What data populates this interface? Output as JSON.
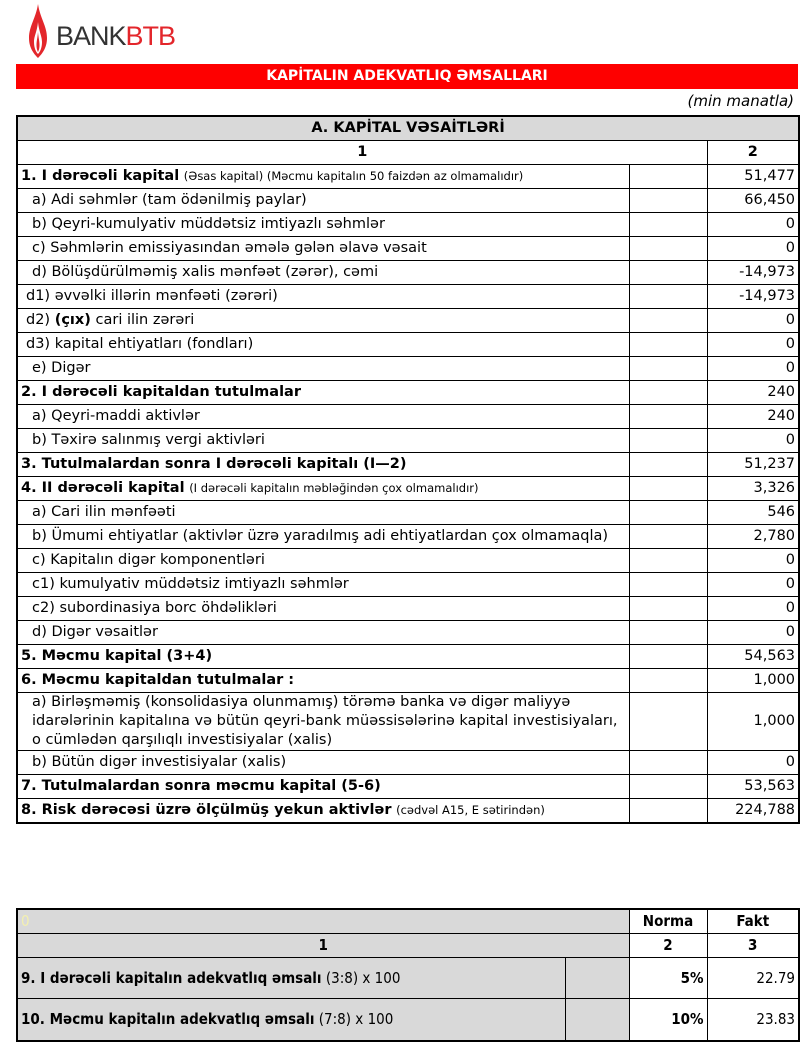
{
  "logo": {
    "text_a": "BANK",
    "text_b": "BTB"
  },
  "title": "KAPİTALIN ADEKVATLIQ ƏMSALLARI",
  "unit": "(min manatla)",
  "section_a": {
    "title": "A. KAPİTAL VƏSAİTLƏRİ",
    "col1": "1",
    "col2": "2"
  },
  "rows": [
    {
      "label": "1. I dərəcəli kapital",
      "note": "(Əsas kapital) (Məcmu kapitalın 50 faizdən  az olmamalıdır)",
      "bold": true,
      "value": "51,477"
    },
    {
      "label": "a) Adi səhmlər (tam ödənilmiş paylar)",
      "value": "66,450"
    },
    {
      "label": "b) Qeyri-kumulyativ müddətsiz imtiyazlı səhmlər",
      "value": "0"
    },
    {
      "label": "c) Səhmlərin emissiyasından əmələ gələn  əlavə vəsait",
      "value": "0"
    },
    {
      "label": "d)   Bölüşdürülməmiş xalis mənfəət (zərər), cəmi",
      "value": "-14,973"
    },
    {
      "label": "d1) əvvəlki illərin mənfəəti (zərəri)",
      "value": "-14,973"
    },
    {
      "label": "d2) ",
      "boldpart": "(çıx)",
      "rest": " cari ilin zərəri",
      "value": "0"
    },
    {
      "label": "d3) kapital ehtiyatları (fondları)",
      "value": "0"
    },
    {
      "label": "e) Digər",
      "value": "0"
    },
    {
      "label": "2. I dərəcəli kapitaldan  tutulmalar",
      "bold": true,
      "value": "240"
    },
    {
      "label": "a) Qeyri-maddi aktivlər",
      "value": "240"
    },
    {
      "label": "b) Təxirə salınmış vergi aktivləri",
      "value": "0"
    },
    {
      "label": "3. Tutulmalardan  sonra I dərəcəli kapitalı (I—2)",
      "bold": true,
      "value": "51,237"
    },
    {
      "label": "4. II dərəcəli  kapital",
      "note": "(I dərəcəli  kapitalın  məbləğindən çox olmamalıdır)",
      "bold": true,
      "value": "3,326"
    },
    {
      "label": "a) Cari ilin mənfəəti",
      "value": "546"
    },
    {
      "label": "b) Ümumi ehtiyatlar (aktivlər üzrə yaradılmış adi ehtiyatlardan çox olmamaqla)",
      "value": "2,780"
    },
    {
      "label": "c) Kapitalın digər komponentləri",
      "value": "0"
    },
    {
      "label": "c1) kumulyativ müddətsiz imtiyazlı səhmlər",
      "value": "0"
    },
    {
      "label": "c2) subordinasiya borc öhdəlikləri",
      "value": "0"
    },
    {
      "label": "d) Digər vəsaitlər",
      "value": "0"
    },
    {
      "label": "5. Məcmu kapital (3+4)",
      "bold": true,
      "value": "54,563"
    },
    {
      "label": "6. Məcmu kapitaldan tutulmalar :",
      "bold": true,
      "value": "1,000"
    },
    {
      "label": "a) Birləşməmiş (konsolidasiya olunmamış) törəmə banka və digər maliyyə idarələrinin kapitalına və bütün qeyri-bank müəssisələrinə kapital investisiyaları, o cümlədən qarşılıqlı investisiyalar (xalis)",
      "value": "1,000"
    },
    {
      "label": "b) Bütün digər investisiyalar (xalis)",
      "value": "0"
    },
    {
      "label": "7. Tutulmalardan  sonra məcmu kapital (5-6)",
      "bold": true,
      "value": "53,563"
    },
    {
      "label": "8. Risk dərəcəsi üzrə ölçülmüş  yekun aktivlər",
      "note": "(cədvəl A15, E sətirindən)",
      "bold": true,
      "value": "224,788"
    }
  ],
  "ratios": {
    "header_cell": "0",
    "norma": "Norma",
    "fakt": "Fakt",
    "col1": "1",
    "col2": "2",
    "col3": "3",
    "rows": [
      {
        "label": "9. I dərəcəli  kapitalın  adekvatlıq əmsalı",
        "formula": "(3:8) x 100",
        "norma": "5%",
        "fakt": "22.79"
      },
      {
        "label": "10. Məcmu kapitalın  adekvatlıq  əmsalı",
        "formula": "(7:8) x 100",
        "norma": "10%",
        "fakt": "23.83"
      }
    ]
  }
}
